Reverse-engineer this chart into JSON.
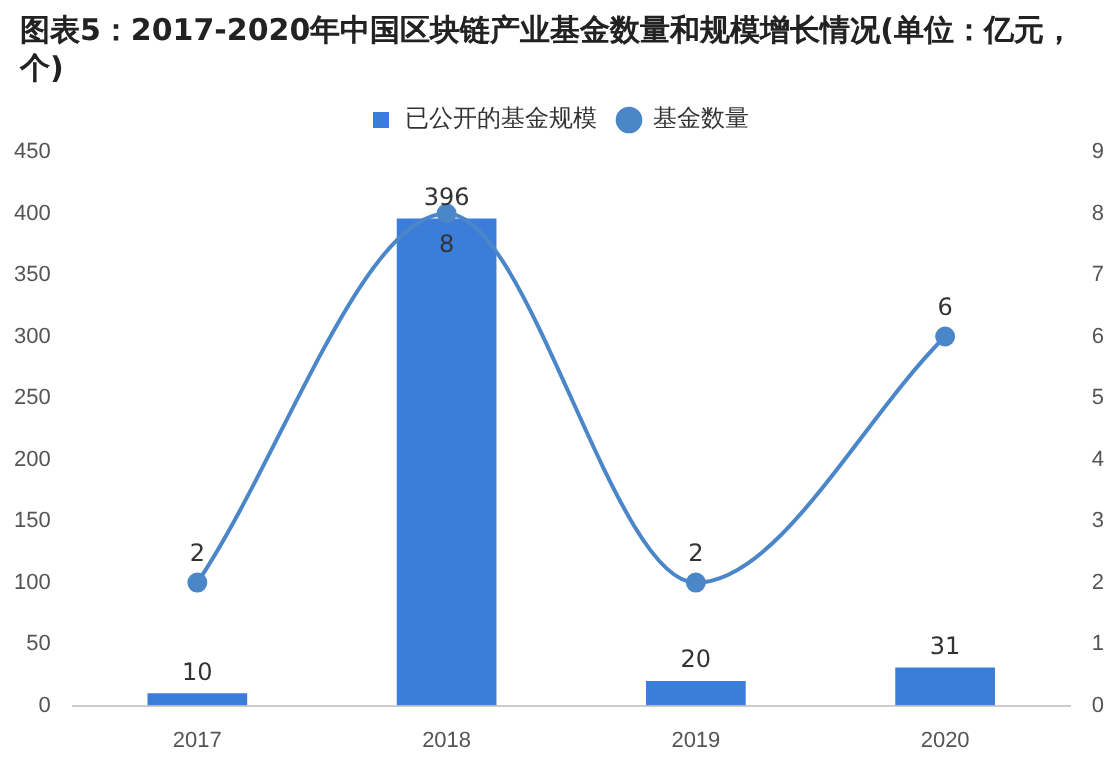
{
  "chart_data": {
    "type": "bar",
    "title": "图表5：2017-2020年中国区块链产业基金数量和规模增长情况(单位：亿元，个)",
    "categories": [
      "2017",
      "2018",
      "2019",
      "2020"
    ],
    "series": [
      {
        "name": "已公开的基金规模",
        "type": "bar",
        "color": "#3b7dd8",
        "values": [
          10,
          396,
          20,
          31
        ]
      },
      {
        "name": "基金数量",
        "type": "line",
        "axis": "y2",
        "color": "#4a86c8",
        "values": [
          2,
          8,
          2,
          6
        ]
      }
    ],
    "ylim": [
      0,
      450
    ],
    "yticks": [
      0,
      50,
      100,
      150,
      200,
      250,
      300,
      350,
      400,
      450
    ],
    "y2lim": [
      0,
      9
    ],
    "y2ticks": [
      0,
      1,
      2,
      3,
      4,
      5,
      6,
      7,
      8,
      9
    ],
    "grid": false,
    "legend": "top",
    "marker": "circle",
    "data_labels": true
  }
}
